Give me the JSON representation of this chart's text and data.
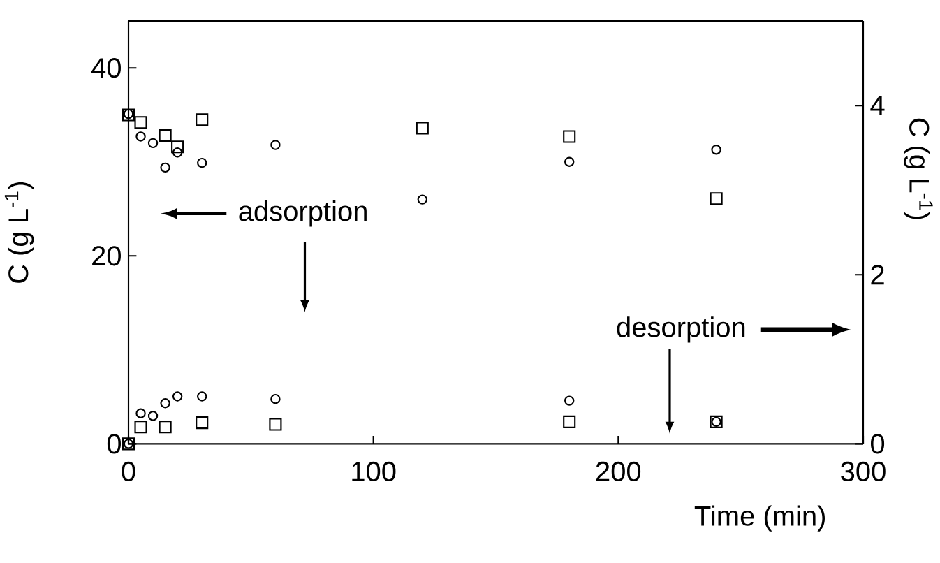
{
  "chart_data": {
    "type": "scatter",
    "xlabel": "Time (min)",
    "ylabel": "C (g L$^{-1}$)",
    "y2label": "C (g L$^{-1}$)",
    "xlim": [
      0,
      300
    ],
    "xticks": [
      0,
      100,
      200,
      300
    ],
    "ylim": [
      0,
      45
    ],
    "yticks": [
      0,
      20,
      40
    ],
    "y2lim": [
      0,
      5
    ],
    "y2ticks": [
      0,
      2,
      4
    ],
    "annotations": [
      "adsorption",
      "desorption"
    ],
    "series": [
      {
        "color": "#000000",
        "marker": "circle",
        "axis": "y",
        "x": [
          0,
          5,
          10,
          15,
          20,
          30,
          60,
          120,
          180,
          240
        ],
        "values": [
          35.1,
          32.7,
          32,
          29.4,
          31,
          29.9,
          31.8,
          26,
          30,
          31.3
        ]
      },
      {
        "color": "#000000",
        "marker": "square",
        "axis": "y",
        "x": [
          0,
          5,
          15,
          20,
          30,
          120,
          180,
          240
        ],
        "values": [
          35,
          34.2,
          32.8,
          31.6,
          34.5,
          33.6,
          32.7,
          26.1
        ]
      },
      {
        "color": "#000000",
        "marker": "square",
        "axis": "y2",
        "x": [
          0,
          5,
          15,
          30,
          60,
          180,
          240
        ],
        "values": [
          0,
          0.2,
          0.2,
          0.25,
          0.23,
          0.26,
          0.26
        ]
      },
      {
        "color": "#000000",
        "marker": "circle",
        "axis": "y2",
        "x": [
          0,
          5,
          10,
          15,
          20,
          30,
          60,
          180,
          240
        ],
        "values": [
          0,
          0.36,
          0.33,
          0.48,
          0.56,
          0.56,
          0.53,
          0.51,
          0.26
        ]
      }
    ]
  }
}
